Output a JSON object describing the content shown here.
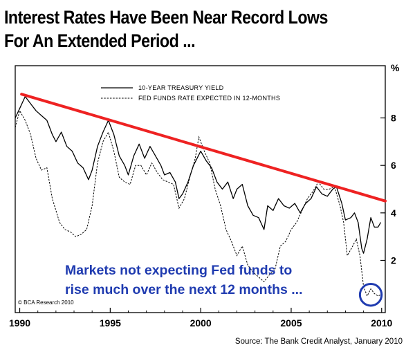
{
  "header": {
    "title_line1": "Interest Rates Have Been Near Record Lows",
    "title_line2": "For An Extended Period ..."
  },
  "footer": {
    "source": "Source: The Bank Credit Analyst, January 2010",
    "copyright": "© BCA Research 2010"
  },
  "colors": {
    "trendline": "#ee2222",
    "annotation": "#1f3bb0",
    "series": "#000000"
  },
  "chart_data": {
    "type": "line",
    "title": "Interest Rates Have Been Near Record Lows For An Extended Period ...",
    "xlabel": "",
    "ylabel": "%",
    "xlim": [
      1989.75,
      2010.2
    ],
    "ylim": [
      -0.2,
      10.2
    ],
    "x_ticks": [
      1990,
      1995,
      2000,
      2005,
      2010
    ],
    "y_ticks": [
      2,
      4,
      6,
      8
    ],
    "grid": false,
    "legend_position": "top-left",
    "series": [
      {
        "name": "10-YEAR TREASURY YIELD",
        "style": "solid",
        "points": [
          [
            1989.75,
            8.0
          ],
          [
            1990.0,
            8.4
          ],
          [
            1990.3,
            8.9
          ],
          [
            1990.6,
            8.6
          ],
          [
            1990.9,
            8.3
          ],
          [
            1991.2,
            8.1
          ],
          [
            1991.5,
            7.9
          ],
          [
            1991.8,
            7.3
          ],
          [
            1992.0,
            7.0
          ],
          [
            1992.3,
            7.4
          ],
          [
            1992.6,
            6.8
          ],
          [
            1992.9,
            6.6
          ],
          [
            1993.2,
            6.1
          ],
          [
            1993.5,
            5.9
          ],
          [
            1993.8,
            5.4
          ],
          [
            1994.0,
            5.8
          ],
          [
            1994.3,
            6.8
          ],
          [
            1994.6,
            7.4
          ],
          [
            1994.9,
            7.9
          ],
          [
            1995.2,
            7.3
          ],
          [
            1995.5,
            6.4
          ],
          [
            1995.8,
            6.0
          ],
          [
            1996.0,
            5.6
          ],
          [
            1996.3,
            6.4
          ],
          [
            1996.6,
            6.9
          ],
          [
            1996.9,
            6.3
          ],
          [
            1997.2,
            6.8
          ],
          [
            1997.5,
            6.4
          ],
          [
            1997.8,
            6.0
          ],
          [
            1998.0,
            5.6
          ],
          [
            1998.3,
            5.7
          ],
          [
            1998.6,
            5.3
          ],
          [
            1998.8,
            4.6
          ],
          [
            1999.0,
            4.8
          ],
          [
            1999.3,
            5.3
          ],
          [
            1999.6,
            6.0
          ],
          [
            2000.0,
            6.6
          ],
          [
            2000.3,
            6.2
          ],
          [
            2000.6,
            5.9
          ],
          [
            2000.9,
            5.3
          ],
          [
            2001.2,
            5.0
          ],
          [
            2001.5,
            5.3
          ],
          [
            2001.8,
            4.6
          ],
          [
            2002.0,
            5.0
          ],
          [
            2002.3,
            5.2
          ],
          [
            2002.6,
            4.3
          ],
          [
            2002.9,
            3.9
          ],
          [
            2003.2,
            3.8
          ],
          [
            2003.5,
            3.3
          ],
          [
            2003.7,
            4.3
          ],
          [
            2004.0,
            4.1
          ],
          [
            2004.3,
            4.6
          ],
          [
            2004.6,
            4.3
          ],
          [
            2004.9,
            4.2
          ],
          [
            2005.2,
            4.4
          ],
          [
            2005.5,
            4.0
          ],
          [
            2005.8,
            4.4
          ],
          [
            2006.1,
            4.6
          ],
          [
            2006.4,
            5.1
          ],
          [
            2006.7,
            4.8
          ],
          [
            2007.0,
            4.7
          ],
          [
            2007.3,
            5.0
          ],
          [
            2007.5,
            5.1
          ],
          [
            2007.8,
            4.4
          ],
          [
            2008.0,
            3.7
          ],
          [
            2008.3,
            3.8
          ],
          [
            2008.5,
            4.0
          ],
          [
            2008.7,
            3.6
          ],
          [
            2008.9,
            2.5
          ],
          [
            2009.0,
            2.3
          ],
          [
            2009.2,
            2.9
          ],
          [
            2009.4,
            3.8
          ],
          [
            2009.6,
            3.4
          ],
          [
            2009.8,
            3.4
          ],
          [
            2009.95,
            3.6
          ]
        ]
      },
      {
        "name": "FED FUNDS RATE EXPECTED IN 12-MONTHS",
        "style": "dashed",
        "points": [
          [
            1989.75,
            7.6
          ],
          [
            1990.0,
            8.3
          ],
          [
            1990.3,
            7.9
          ],
          [
            1990.6,
            7.3
          ],
          [
            1990.9,
            6.3
          ],
          [
            1991.2,
            5.8
          ],
          [
            1991.5,
            5.9
          ],
          [
            1991.8,
            4.6
          ],
          [
            1992.0,
            4.1
          ],
          [
            1992.2,
            3.6
          ],
          [
            1992.5,
            3.3
          ],
          [
            1992.8,
            3.2
          ],
          [
            1993.1,
            3.0
          ],
          [
            1993.4,
            3.1
          ],
          [
            1993.7,
            3.3
          ],
          [
            1994.0,
            4.3
          ],
          [
            1994.3,
            6.1
          ],
          [
            1994.6,
            7.0
          ],
          [
            1994.9,
            7.4
          ],
          [
            1995.2,
            6.6
          ],
          [
            1995.5,
            5.5
          ],
          [
            1995.8,
            5.3
          ],
          [
            1996.1,
            5.2
          ],
          [
            1996.4,
            6.0
          ],
          [
            1996.7,
            6.0
          ],
          [
            1997.0,
            5.6
          ],
          [
            1997.3,
            6.1
          ],
          [
            1997.6,
            5.7
          ],
          [
            1997.9,
            5.4
          ],
          [
            1998.2,
            5.3
          ],
          [
            1998.5,
            5.2
          ],
          [
            1998.8,
            4.2
          ],
          [
            1999.1,
            4.6
          ],
          [
            1999.4,
            5.5
          ],
          [
            1999.7,
            6.3
          ],
          [
            1999.9,
            7.2
          ],
          [
            2000.2,
            6.6
          ],
          [
            2000.5,
            6.1
          ],
          [
            2000.8,
            5.0
          ],
          [
            2001.1,
            4.3
          ],
          [
            2001.4,
            3.3
          ],
          [
            2001.7,
            2.8
          ],
          [
            2002.0,
            2.2
          ],
          [
            2002.3,
            2.6
          ],
          [
            2002.6,
            1.8
          ],
          [
            2002.9,
            1.5
          ],
          [
            2003.2,
            1.3
          ],
          [
            2003.5,
            1.1
          ],
          [
            2003.8,
            1.4
          ],
          [
            2004.1,
            1.6
          ],
          [
            2004.4,
            2.6
          ],
          [
            2004.7,
            2.8
          ],
          [
            2005.0,
            3.3
          ],
          [
            2005.3,
            3.6
          ],
          [
            2005.6,
            4.1
          ],
          [
            2005.9,
            4.6
          ],
          [
            2006.2,
            4.9
          ],
          [
            2006.5,
            5.3
          ],
          [
            2006.8,
            5.0
          ],
          [
            2007.1,
            5.0
          ],
          [
            2007.4,
            5.1
          ],
          [
            2007.7,
            4.3
          ],
          [
            2007.9,
            3.6
          ],
          [
            2008.1,
            2.2
          ],
          [
            2008.4,
            2.6
          ],
          [
            2008.6,
            2.9
          ],
          [
            2008.8,
            2.2
          ],
          [
            2009.0,
            0.9
          ],
          [
            2009.2,
            0.5
          ],
          [
            2009.4,
            0.8
          ],
          [
            2009.6,
            0.6
          ],
          [
            2009.8,
            0.5
          ],
          [
            2009.95,
            0.55
          ]
        ]
      }
    ],
    "trendline": {
      "label": "downtrend",
      "from": [
        1990.1,
        9.0
      ],
      "to": [
        2010.2,
        4.5
      ]
    },
    "annotations": [
      "Markets not expecting Fed funds to",
      "rise much over the next 12 months ..."
    ],
    "highlight_circle": {
      "center": [
        2009.4,
        0.55
      ],
      "radius_years": 0.6
    }
  }
}
